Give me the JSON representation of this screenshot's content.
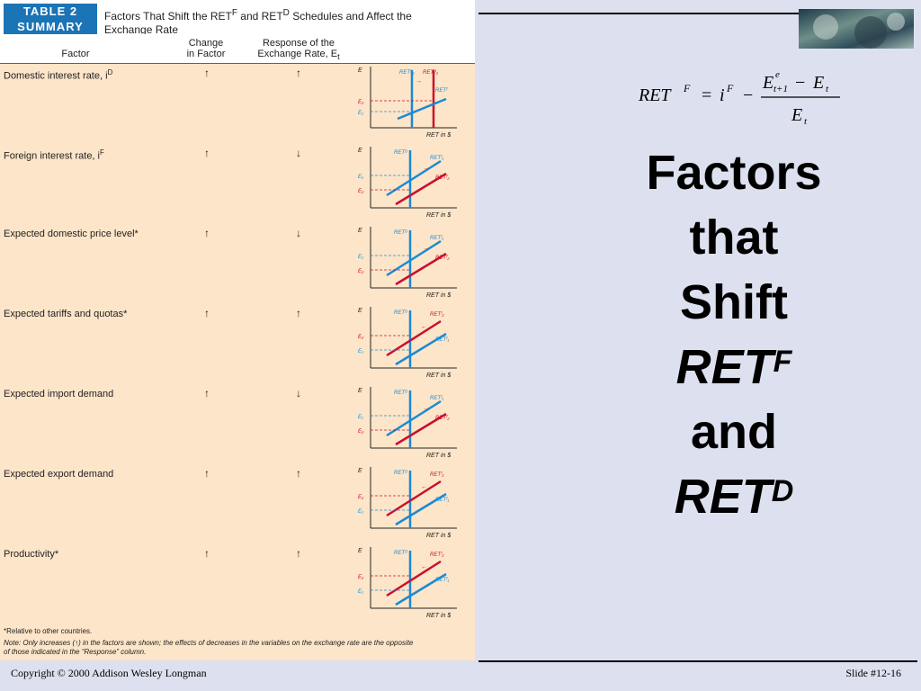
{
  "table": {
    "badge_line1": "TABLE 2",
    "badge_line2": "SUMMARY",
    "title_line1": "Factors That Shift the RET",
    "title_sup_f": "F",
    "title_mid": " and RET",
    "title_sup_d": "D",
    "title_rest": " Schedules and Affect the",
    "title_line2": "Exchange Rate",
    "col_factor": "Factor",
    "col_change_1": "Change",
    "col_change_2": "in Factor",
    "col_response_1": "Response of the",
    "col_response_2": "Exchange Rate, E",
    "col_response_sub": "t",
    "rows": [
      {
        "factor": "Domestic interest rate, i",
        "sup": "D",
        "change": "↑",
        "response": "↑"
      },
      {
        "factor": "Foreign interest rate, i",
        "sup": "F",
        "change": "↑",
        "response": "↓"
      },
      {
        "factor": "Expected domestic price level*",
        "sup": "",
        "change": "↑",
        "response": "↓"
      },
      {
        "factor": "Expected tariffs and quotas*",
        "sup": "",
        "change": "↑",
        "response": "↑"
      },
      {
        "factor": "Expected import demand",
        "sup": "",
        "change": "↑",
        "response": "↓"
      },
      {
        "factor": "Expected export demand",
        "sup": "",
        "change": "↑",
        "response": "↑"
      },
      {
        "factor": "Productivity*",
        "sup": "",
        "change": "↑",
        "response": "↑"
      }
    ],
    "graph_labels": {
      "axis_y": "E",
      "axis_y_sub": "t",
      "axis_x": "RET in $",
      "e1": "E₁",
      "e2": "E₂",
      "retd": "RETᴰ",
      "retf1": "RETᶠ₁",
      "retf2": "RETᶠ₂",
      "retd1": "RETᴰ₁",
      "retd2": "RETᴰ₂",
      "retf": "RETᶠ"
    },
    "note_1": "*Relative to other countries.",
    "note_2": "Note: Only increases (↑) in the factors are shown; the effects of decreases in the variables on the exchange rate are the opposite",
    "note_3": "of those indicated in the “Response” column."
  },
  "formula": {
    "lhs": "RET",
    "lhs_sup": "F",
    "eq": "=",
    "i": "i",
    "i_sup": "F",
    "minus": "−",
    "num": "E",
    "num_sup": "e",
    "num_sub": "t+1",
    "num_minus": "−",
    "num2": "E",
    "num2_sub": "t",
    "den": "E",
    "den_sub": "t"
  },
  "title": {
    "line1": "Factors",
    "line2": "that",
    "line3": "Shift",
    "line4": "RET",
    "line4_sup": "F",
    "line5": "and",
    "line6": "RET",
    "line6_sup": "D"
  },
  "footer": {
    "copyright": "Copyright © 2000 Addison Wesley Longman",
    "slide": "Slide #12-16"
  },
  "colors": {
    "blue": "#1a8ad4",
    "red": "#c8102e",
    "panel": "#fde5c9",
    "background": "#dde1ef"
  }
}
